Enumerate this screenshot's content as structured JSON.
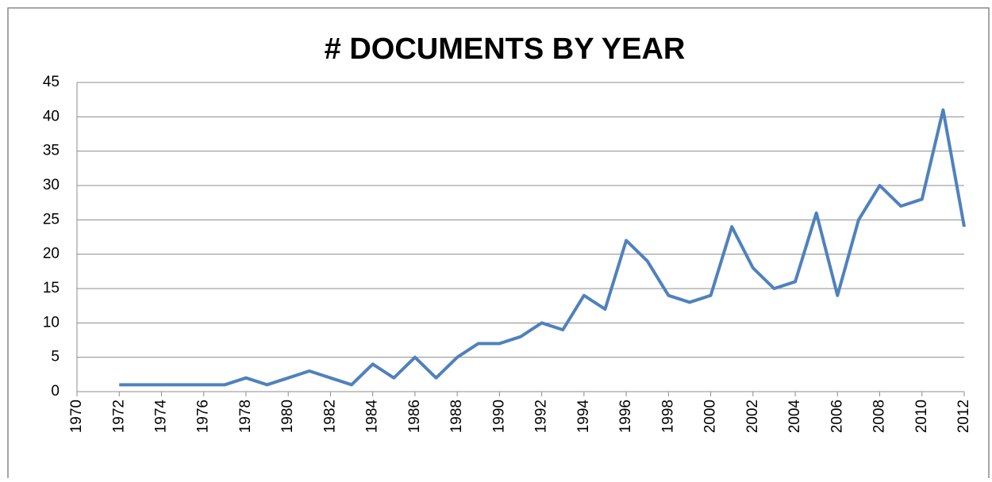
{
  "chart_data": {
    "type": "line",
    "title": "# DOCUMENTS BY YEAR",
    "x": [
      1972,
      1973,
      1974,
      1975,
      1976,
      1977,
      1978,
      1979,
      1980,
      1981,
      1982,
      1983,
      1984,
      1985,
      1986,
      1987,
      1988,
      1989,
      1990,
      1991,
      1992,
      1993,
      1994,
      1995,
      1996,
      1997,
      1998,
      1999,
      2000,
      2001,
      2002,
      2003,
      2004,
      2005,
      2006,
      2007,
      2008,
      2009,
      2010,
      2011,
      2012
    ],
    "series": [
      {
        "name": "Documents",
        "color": "#4f81bd",
        "values": [
          1,
          1,
          1,
          1,
          1,
          1,
          2,
          1,
          2,
          3,
          2,
          1,
          4,
          2,
          5,
          2,
          5,
          7,
          7,
          8,
          10,
          9,
          14,
          12,
          22,
          19,
          14,
          13,
          14,
          24,
          18,
          15,
          16,
          26,
          14,
          25,
          30,
          27,
          28,
          41,
          24
        ]
      }
    ],
    "xlim": [
      1970,
      2012
    ],
    "xticks": [
      1970,
      1972,
      1974,
      1976,
      1978,
      1980,
      1982,
      1984,
      1986,
      1988,
      1990,
      1992,
      1994,
      1996,
      1998,
      2000,
      2002,
      2004,
      2006,
      2008,
      2010,
      2012
    ],
    "ylim": [
      0,
      45
    ],
    "yticks": [
      0,
      5,
      10,
      15,
      20,
      25,
      30,
      35,
      40,
      45
    ],
    "grid": true
  }
}
